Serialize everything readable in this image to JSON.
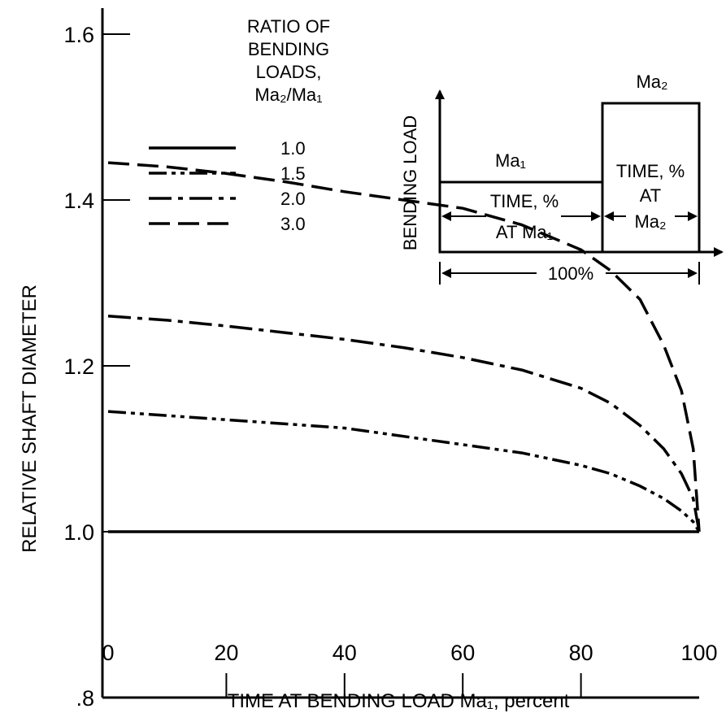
{
  "chart_data": {
    "type": "line",
    "title": "",
    "xlabel": "TIME AT BENDING LOAD Ma₁, percent",
    "ylabel": "RELATIVE SHAFT DIAMETER",
    "xlim": [
      0,
      100
    ],
    "ylim": [
      0.8,
      1.8
    ],
    "x_ticks": [
      0,
      20,
      40,
      60,
      80,
      100
    ],
    "x_tick_labels": [
      "0",
      "20",
      "40",
      "60",
      "80",
      "100"
    ],
    "y_ticks": [
      0.8,
      1.0,
      1.2,
      1.4,
      1.6
    ],
    "y_tick_labels": [
      ".8",
      "1.0",
      "1.2",
      "1.4",
      "1.6"
    ],
    "grid": false,
    "legend": {
      "title": [
        "RATIO OF",
        "BENDING",
        "LOADS,",
        "Ma₂/Ma₁"
      ],
      "position": "top-left"
    },
    "series": [
      {
        "name": "1.0",
        "style": "solid",
        "x": [
          0,
          20,
          40,
          60,
          80,
          100
        ],
        "y": [
          1.0,
          1.0,
          1.0,
          1.0,
          1.0,
          1.0
        ]
      },
      {
        "name": "1.5",
        "style": "dash-dot-dot",
        "x": [
          0,
          10,
          20,
          30,
          40,
          50,
          60,
          70,
          80,
          85,
          90,
          94,
          97,
          99,
          100
        ],
        "y": [
          1.145,
          1.14,
          1.135,
          1.13,
          1.125,
          1.115,
          1.105,
          1.095,
          1.08,
          1.07,
          1.055,
          1.04,
          1.025,
          1.012,
          1.0
        ]
      },
      {
        "name": "2.0",
        "style": "dash-dot",
        "x": [
          0,
          10,
          20,
          30,
          40,
          50,
          60,
          70,
          80,
          85,
          90,
          94,
          97,
          99,
          100
        ],
        "y": [
          1.26,
          1.255,
          1.248,
          1.24,
          1.232,
          1.222,
          1.21,
          1.195,
          1.173,
          1.155,
          1.128,
          1.1,
          1.07,
          1.04,
          1.0
        ]
      },
      {
        "name": "3.0",
        "style": "dashed",
        "x": [
          0,
          10,
          20,
          30,
          40,
          50,
          60,
          70,
          80,
          85,
          90,
          94,
          97,
          99,
          100
        ],
        "y": [
          1.445,
          1.44,
          1.432,
          1.422,
          1.41,
          1.4,
          1.39,
          1.37,
          1.34,
          1.315,
          1.28,
          1.225,
          1.17,
          1.1,
          1.0
        ]
      }
    ],
    "inset": {
      "y_axis_label": "BENDING LOAD",
      "ma1_label": "Ma₁",
      "ma2_label": "Ma₂",
      "time_ma1_lines": [
        "TIME, %",
        "AT Ma₁"
      ],
      "time_ma2_lines": [
        "TIME, %",
        "AT",
        "Ma₂"
      ],
      "total_label": "100%"
    }
  }
}
